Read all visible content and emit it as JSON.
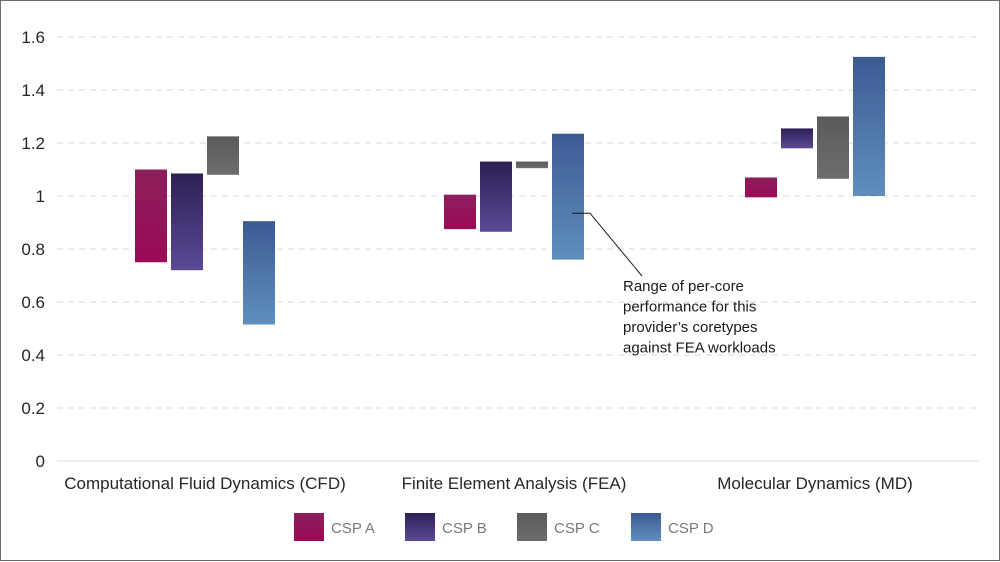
{
  "chart_data": {
    "type": "bar",
    "subtype": "floating-range",
    "categories": [
      "Computational Fluid Dynamics (CFD)",
      "Finite Element Analysis (FEA)",
      "Molecular Dynamics (MD)"
    ],
    "yticks": [
      "0",
      "0.2",
      "0.4",
      "0.6",
      "0.8",
      "1",
      "1.2",
      "1.4",
      "1.6"
    ],
    "ylim": [
      0,
      1.6
    ],
    "grid": true,
    "legend_position": "bottom",
    "series": [
      {
        "name": "CSP A",
        "color_top": "#8c1f5c",
        "color_bottom": "#9b0a56",
        "ranges": [
          [
            0.75,
            1.1
          ],
          [
            0.875,
            1.005
          ],
          [
            0.995,
            1.07
          ]
        ]
      },
      {
        "name": "CSP B",
        "color_top": "#2e1f54",
        "color_bottom": "#5c4996",
        "ranges": [
          [
            0.72,
            1.085
          ],
          [
            0.865,
            1.13
          ],
          [
            1.18,
            1.255
          ]
        ]
      },
      {
        "name": "CSP C",
        "color_top": "#5a5a5a",
        "color_bottom": "#6d6d6d",
        "ranges": [
          [
            1.08,
            1.225
          ],
          [
            1.105,
            1.13
          ],
          [
            1.065,
            1.3
          ]
        ]
      },
      {
        "name": "CSP D",
        "color_top": "#3d5a92",
        "color_bottom": "#5f8fbe",
        "ranges": [
          [
            0.515,
            0.905
          ],
          [
            0.76,
            1.235
          ],
          [
            1.0,
            1.525
          ]
        ]
      }
    ],
    "annotation": {
      "lines": [
        "Range of per-core",
        "performance for this",
        "provider’s coretypes",
        "against FEA workloads"
      ],
      "target_category": 1,
      "target_series": 3
    }
  }
}
